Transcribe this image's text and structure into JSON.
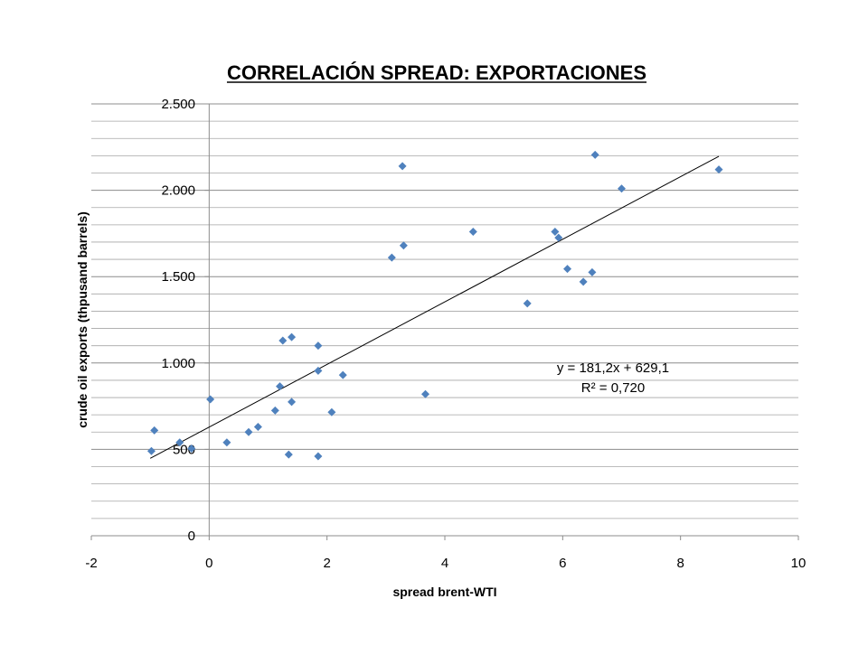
{
  "chart_data": {
    "type": "scatter",
    "title": "CORRELACIÓN SPREAD: EXPORTACIONES",
    "xlabel": "spread brent-WTI",
    "ylabel": "crude oil exports (thpusand barrels)",
    "xlim": [
      -2,
      10
    ],
    "ylim": [
      0,
      2500
    ],
    "x_ticks": [
      -2,
      0,
      2,
      4,
      6,
      8,
      10
    ],
    "x_tick_labels": [
      "-2",
      "0",
      "2",
      "4",
      "6",
      "8",
      "10"
    ],
    "y_ticks": [
      0,
      500,
      1000,
      1500,
      2000,
      2500
    ],
    "y_tick_labels": [
      "0",
      "500",
      "1.000",
      "1.500",
      "2.000",
      "2.500"
    ],
    "minor_grid_step": 100,
    "grid": true,
    "marker_color": "#4F81BD",
    "marker_shape": "diamond",
    "trendline": {
      "slope": 181.2,
      "intercept": 629.1,
      "x_range": [
        -1.0,
        8.65
      ]
    },
    "equation_text": "y = 181,2x + 629,1",
    "r2_text": "R² = 0,720",
    "points": [
      {
        "x": -0.98,
        "y": 490
      },
      {
        "x": -0.93,
        "y": 610
      },
      {
        "x": -0.5,
        "y": 540
      },
      {
        "x": -0.3,
        "y": 505
      },
      {
        "x": 0.02,
        "y": 790
      },
      {
        "x": 0.3,
        "y": 540
      },
      {
        "x": 0.67,
        "y": 600
      },
      {
        "x": 0.83,
        "y": 630
      },
      {
        "x": 1.12,
        "y": 725
      },
      {
        "x": 1.2,
        "y": 865
      },
      {
        "x": 1.25,
        "y": 1130
      },
      {
        "x": 1.35,
        "y": 470
      },
      {
        "x": 1.4,
        "y": 1150
      },
      {
        "x": 1.4,
        "y": 775
      },
      {
        "x": 1.85,
        "y": 1100
      },
      {
        "x": 1.85,
        "y": 955
      },
      {
        "x": 1.85,
        "y": 460
      },
      {
        "x": 2.08,
        "y": 715
      },
      {
        "x": 2.27,
        "y": 930
      },
      {
        "x": 3.1,
        "y": 1610
      },
      {
        "x": 3.28,
        "y": 2140
      },
      {
        "x": 3.3,
        "y": 1680
      },
      {
        "x": 3.67,
        "y": 820
      },
      {
        "x": 4.48,
        "y": 1760
      },
      {
        "x": 5.4,
        "y": 1345
      },
      {
        "x": 5.87,
        "y": 1760
      },
      {
        "x": 5.93,
        "y": 1725
      },
      {
        "x": 6.08,
        "y": 1545
      },
      {
        "x": 6.35,
        "y": 1470
      },
      {
        "x": 6.5,
        "y": 1525
      },
      {
        "x": 6.55,
        "y": 2205
      },
      {
        "x": 7.0,
        "y": 2010
      },
      {
        "x": 8.65,
        "y": 2120
      }
    ]
  }
}
